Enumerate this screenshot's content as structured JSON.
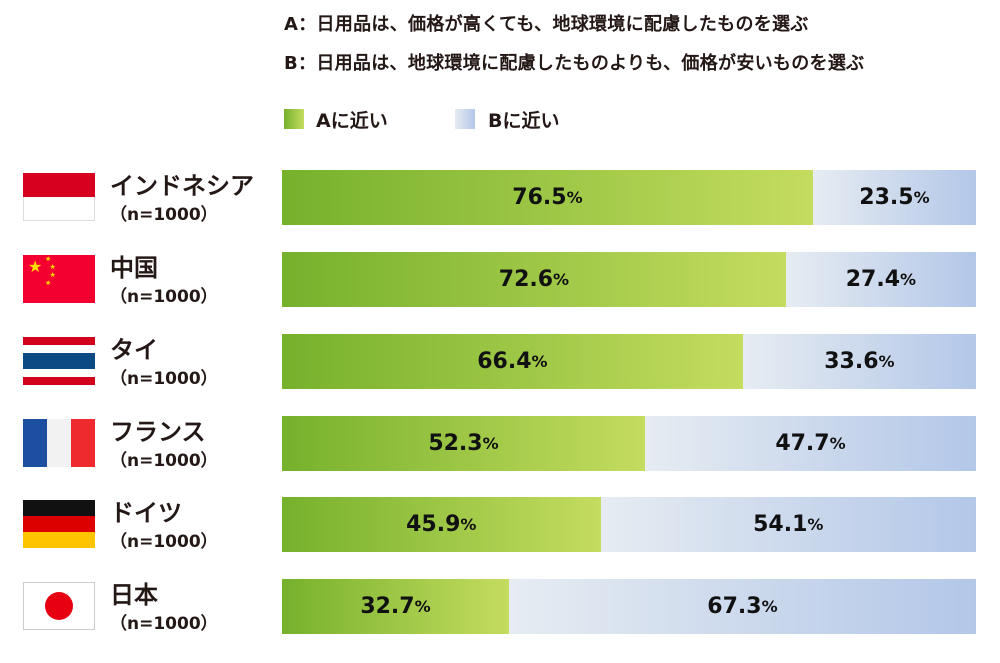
{
  "chart_data": {
    "type": "bar",
    "orientation": "horizontal",
    "stacked": true,
    "definitions": [
      "A：日用品は、価格が高くても、地球環境に配慮したものを選ぶ",
      "B：日用品は、地球環境に配慮したものよりも、価格が安いものを選ぶ"
    ],
    "legend": [
      {
        "name": "Aに近い",
        "color": "#8dc03f"
      },
      {
        "name": "Bに近い",
        "color": "#c4d3ec"
      }
    ],
    "legend_placement": "top",
    "xlim": [
      0,
      100
    ],
    "unit": "%",
    "categories": [
      {
        "name": "インドネシア",
        "n": "（n=1000）",
        "flag": "indonesia-flag"
      },
      {
        "name": "中国",
        "n": "（n=1000）",
        "flag": "china-flag"
      },
      {
        "name": "タイ",
        "n": "（n=1000）",
        "flag": "thailand-flag"
      },
      {
        "name": "フランス",
        "n": "（n=1000）",
        "flag": "france-flag"
      },
      {
        "name": "ドイツ",
        "n": "（n=1000）",
        "flag": "germany-flag"
      },
      {
        "name": "日本",
        "n": "（n=1000）",
        "flag": "japan-flag"
      }
    ],
    "series": [
      {
        "name": "Aに近い",
        "values": [
          76.5,
          72.6,
          66.4,
          52.3,
          45.9,
          32.7
        ]
      },
      {
        "name": "Bに近い",
        "values": [
          23.5,
          27.4,
          33.6,
          47.7,
          54.1,
          67.3
        ]
      }
    ]
  }
}
